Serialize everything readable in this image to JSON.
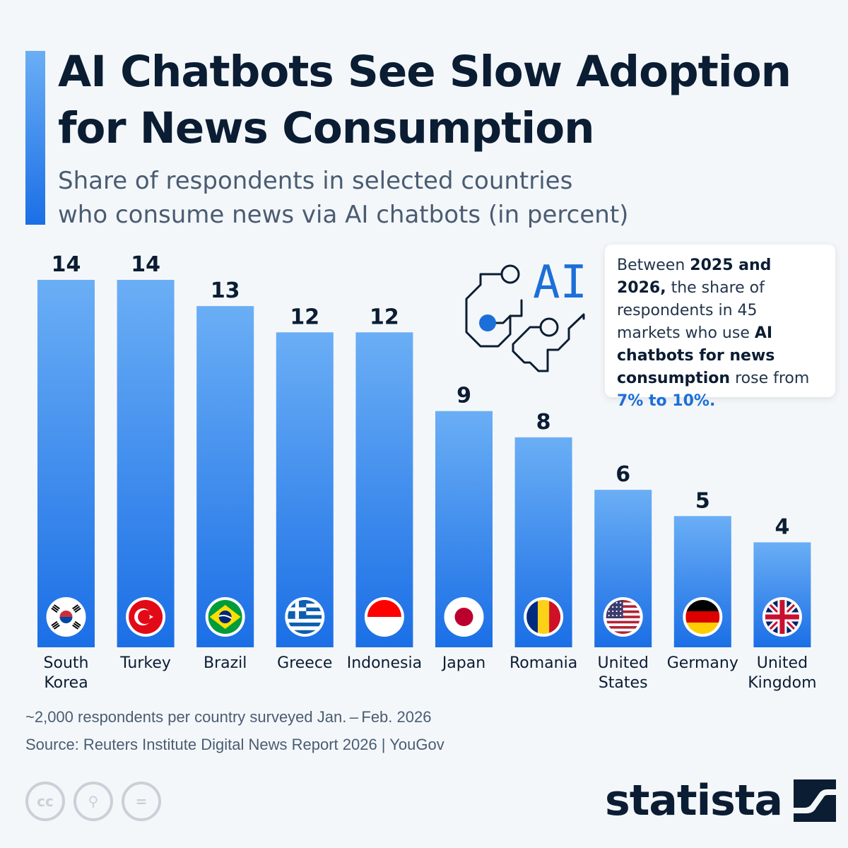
{
  "header": {
    "title_line1": "AI Chatbots See Slow Adoption",
    "title_line2": "for News Consumption",
    "subtitle_line1": "Share of respondents in selected countries",
    "subtitle_line2": "who consume news via AI chatbots (in percent)"
  },
  "chart_data": {
    "type": "bar",
    "categories": [
      "South Korea",
      "Turkey",
      "Brazil",
      "Greece",
      "Indonesia",
      "Japan",
      "Romania",
      "United States",
      "Germany",
      "United Kingdom"
    ],
    "category_lines": [
      [
        "South",
        "Korea"
      ],
      [
        "Turkey"
      ],
      [
        "Brazil"
      ],
      [
        "Greece"
      ],
      [
        "Indonesia"
      ],
      [
        "Japan"
      ],
      [
        "Romania"
      ],
      [
        "United",
        "States"
      ],
      [
        "Germany"
      ],
      [
        "United",
        "Kingdom"
      ]
    ],
    "values": [
      14,
      14,
      13,
      12,
      12,
      9,
      8,
      6,
      5,
      4
    ],
    "flags": [
      "south-korea-flag-icon",
      "turkey-flag-icon",
      "brazil-flag-icon",
      "greece-flag-icon",
      "indonesia-flag-icon",
      "japan-flag-icon",
      "romania-flag-icon",
      "united-states-flag-icon",
      "germany-flag-icon",
      "united-kingdom-flag-icon"
    ],
    "ylim": [
      0,
      14
    ],
    "grid": false,
    "bar_color_top": "#6aaef5",
    "bar_color_bottom": "#1b6fe6"
  },
  "callout": {
    "text1": "Between ",
    "bold1": "2025 and 2026,",
    "text2": " the share of respondents in 45 markets who use ",
    "bold2": "AI chatbots for news consumption",
    "text3": " rose from ",
    "highlight": "7% to 10%.",
    "highlight_color": "#1c6fd8"
  },
  "ai_icon": {
    "label": "AI",
    "color": "#1c6fd8"
  },
  "footer": {
    "note": "~2,000 respondents per country surveyed Jan. – Feb. 2026",
    "source": "Source: Reuters Institute Digital News Report 2026 | YouGov",
    "brand": "statista",
    "license_icons": [
      "cc-icon",
      "attribution-icon",
      "no-derivatives-icon"
    ],
    "license_glyphs": [
      "cc",
      "⚲",
      "="
    ]
  }
}
